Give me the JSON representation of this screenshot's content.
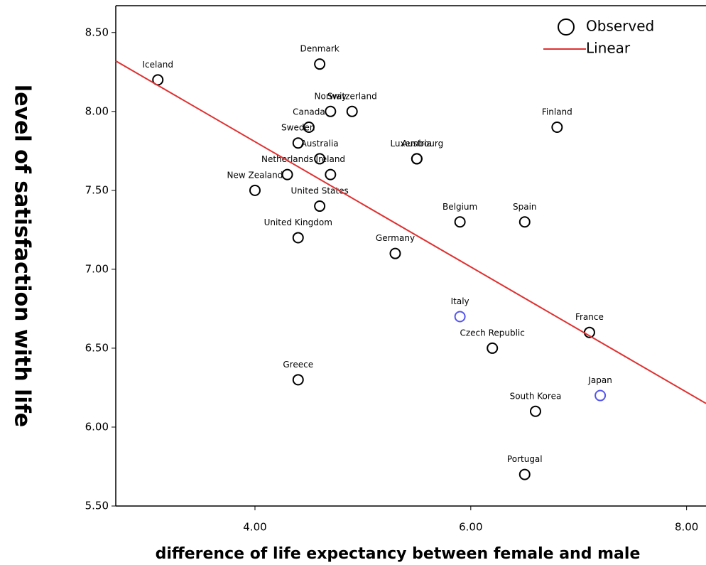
{
  "chart_data": {
    "type": "scatter",
    "x_label": "difference of life expectancy between female and male",
    "y_label": "level of satisfaction with life",
    "xlim": [
      2.71,
      8.18
    ],
    "ylim": [
      5.5,
      8.67
    ],
    "xticks": [
      {
        "value": 4,
        "label": "4.00"
      },
      {
        "value": 6,
        "label": "6.00"
      },
      {
        "value": 8,
        "label": "8.00"
      }
    ],
    "yticks": [
      {
        "value": 5.5,
        "label": "5.50"
      },
      {
        "value": 6,
        "label": "6.00"
      },
      {
        "value": 6.5,
        "label": "6.50"
      },
      {
        "value": 7,
        "label": "7.00"
      },
      {
        "value": 7.5,
        "label": "7.50"
      },
      {
        "value": 8,
        "label": "8.00"
      },
      {
        "value": 8.5,
        "label": "8.50"
      }
    ],
    "legend": "top-right",
    "series": [
      {
        "name": "Observed",
        "type": "scatter",
        "labels": [
          "Iceland",
          "Denmark",
          "Norway",
          "Switzerland",
          "Canada",
          "Sweden",
          "Australia",
          "Netherlands",
          "Ireland",
          "New Zealand",
          "United States",
          "United Kingdom",
          "Germany",
          "Luxembourg",
          "Austria",
          "Finland",
          "Belgium",
          "Spain",
          "Italy",
          "Czech Republic",
          "France",
          "Japan",
          "South Korea",
          "Portugal",
          "Greece"
        ],
        "x": [
          3.1,
          4.6,
          4.7,
          4.9,
          4.5,
          4.4,
          4.6,
          4.3,
          4.7,
          4.0,
          4.6,
          4.4,
          5.3,
          5.5,
          5.5,
          6.8,
          5.9,
          6.5,
          5.9,
          6.2,
          7.1,
          7.2,
          6.6,
          6.5,
          4.4
        ],
        "values": [
          8.2,
          8.3,
          8.0,
          8.0,
          7.9,
          7.8,
          7.7,
          7.6,
          7.6,
          7.5,
          7.4,
          7.2,
          7.1,
          7.7,
          7.7,
          7.9,
          7.3,
          7.3,
          6.7,
          6.5,
          6.6,
          6.2,
          6.1,
          5.7,
          6.3
        ],
        "colors": [
          "#000000",
          "#000000",
          "#000000",
          "#000000",
          "#000000",
          "#000000",
          "#000000",
          "#000000",
          "#000000",
          "#000000",
          "#000000",
          "#000000",
          "#000000",
          "#000000",
          "#000000",
          "#000000",
          "#000000",
          "#000000",
          "#5555ee",
          "#000000",
          "#000000",
          "#5555ee",
          "#000000",
          "#000000",
          "#000000"
        ]
      },
      {
        "name": "Linear",
        "type": "line",
        "color": "#e03030",
        "x": [
          2.71,
          8.18
        ],
        "values": [
          8.32,
          6.15
        ]
      }
    ]
  }
}
